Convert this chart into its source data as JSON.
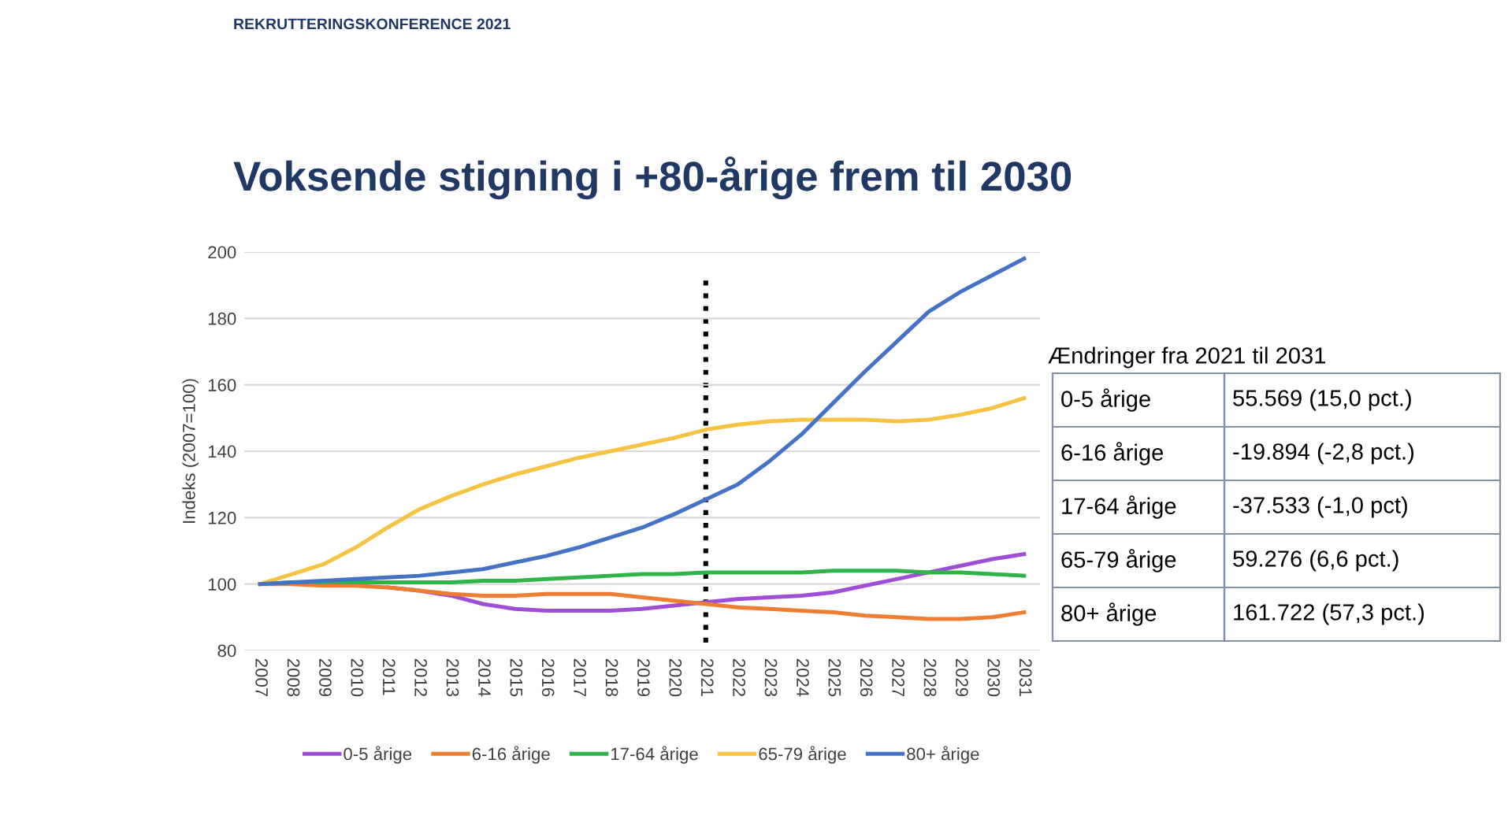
{
  "chart_data": {
    "type": "line",
    "title": "Voksende stigning i +80-årige frem til 2030",
    "subtitle": "REKRUTTERINGSKONFERENCE 2021",
    "ylabel": "Indeks (2007=100)",
    "categories": [
      "2007",
      "2008",
      "2009",
      "2010",
      "2011",
      "2012",
      "2013",
      "2014",
      "2015",
      "2016",
      "2017",
      "2018",
      "2019",
      "2020",
      "2021",
      "2022",
      "2023",
      "2024",
      "2025",
      "2026",
      "2027",
      "2028",
      "2029",
      "2030",
      "2031"
    ],
    "series": [
      {
        "name": "0-5 årige",
        "color": "#9e4fd6",
        "values": [
          null,
          null,
          null,
          null,
          99,
          98,
          96.5,
          94,
          92.5,
          92,
          92,
          92,
          92.5,
          93.5,
          94.5,
          95.5,
          96,
          96.5,
          97.5,
          99.5,
          101.5,
          103.5,
          105.5,
          107.5,
          109
        ]
      },
      {
        "name": "6-16 årige",
        "color": "#ed7d31",
        "values": [
          100,
          100,
          99.5,
          99.5,
          99,
          98,
          97,
          96.5,
          96.5,
          97,
          97,
          97,
          96,
          95,
          94,
          93,
          92.5,
          92,
          91.5,
          90.5,
          90,
          89.5,
          89.5,
          90,
          91.5
        ]
      },
      {
        "name": "17-64 årige",
        "color": "#2fb34a",
        "values": [
          100,
          100.5,
          100.5,
          100.5,
          100.5,
          100.5,
          100.5,
          101,
          101,
          101.5,
          102,
          102.5,
          103,
          103,
          103.5,
          103.5,
          103.5,
          103.5,
          104,
          104,
          104,
          103.5,
          103.5,
          103,
          102.5
        ]
      },
      {
        "name": "65-79 årige",
        "color": "#f5c242",
        "values": [
          100,
          103,
          106,
          111,
          117,
          122.5,
          126.5,
          130,
          133,
          135.5,
          138,
          140,
          142,
          144,
          146.5,
          148,
          149,
          149.5,
          149.5,
          149.5,
          149,
          149.5,
          151,
          153,
          156
        ]
      },
      {
        "name": "80+ årige",
        "color": "#4472c4",
        "values": [
          100,
          100.5,
          101,
          101.5,
          102,
          102.5,
          103.5,
          104.5,
          106.5,
          108.5,
          111,
          114,
          117,
          121,
          125.5,
          130,
          137,
          145,
          154.5,
          164,
          173,
          182,
          188,
          193,
          198
        ]
      }
    ],
    "ylim": [
      80,
      200
    ],
    "yticks": [
      80,
      100,
      120,
      140,
      160,
      180,
      200
    ],
    "grid": "y",
    "legend": "bottom",
    "ref_lines": [
      {
        "axis": "x",
        "value": "2021",
        "color": "#000000",
        "line_style": "dotted"
      }
    ],
    "annotations": [
      "Ændringer fra 2021 til 2031",
      "0-5 årige",
      "55.569 (15,0 pct.)",
      "6-16 årige",
      "-19.894 (-2,8 pct.)",
      "17-64 årige",
      "-37.533 (-1,0 pct)",
      "65-79 årige",
      "59.276 (6,6 pct.)",
      "80+ årige",
      "161.722 (57,3 pct.)"
    ]
  }
}
